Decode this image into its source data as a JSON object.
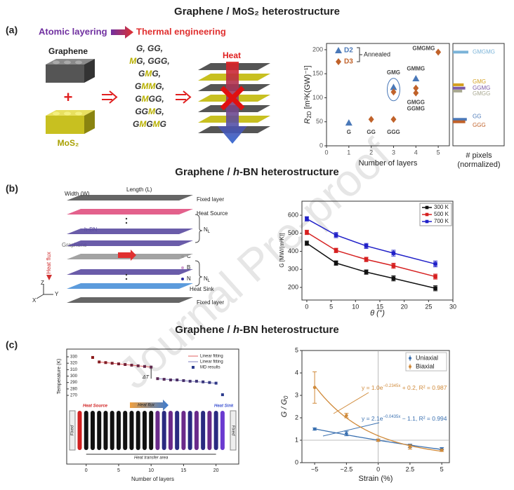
{
  "figure": {
    "watermark": "Journal Pre-proof",
    "a": {
      "title": "Graphene / MoS₂ heterostructure",
      "label": "(a)",
      "atomic_layering": "Atomic layering",
      "thermal_engineering": "Thermal engineering",
      "graphene": "Graphene",
      "plus": "+",
      "mos2": "MoS₂",
      "sequences": [
        "G, GG,",
        "MG, GGG,",
        "GMG,",
        "GMMG,",
        "GMGG,",
        "GGMG,",
        "GMGMG"
      ],
      "heat": "Heat"
    },
    "b": {
      "title": [
        "Graphene / ",
        "h",
        "-BN heterostructure"
      ],
      "label": "(b)",
      "width": "Width (W)",
      "length": "Length (L)",
      "fixed_top": "Fixed layer",
      "heat_source": "Heat Source",
      "n_l_top": [
        "N",
        "L"
      ],
      "hbn": "h-BN",
      "graphene": "Graphene",
      "heat_flux": "Heat flux",
      "n_l_bottom": [
        "N",
        "L"
      ],
      "atoms": [
        "C",
        "B",
        "N"
      ],
      "heat_sink": "Heat Sink",
      "fixed_bottom": "Fixed layer",
      "axes": [
        "Z",
        "Y",
        "X"
      ]
    },
    "c": {
      "title": [
        "Graphene / ",
        "h",
        "-BN heterostructure"
      ],
      "label": "(c)",
      "heat_source": "Heat Source",
      "heat_flux": "Heat flux",
      "heat_sink": "Heat Sink",
      "fixed": [
        "Fixed",
        "Fixed"
      ],
      "transfer_area": "Heat transfer area",
      "delta_t": "ΔT"
    }
  },
  "chart_data": [
    {
      "type": "scatter",
      "xlabel": "Number of layers",
      "ylabel": {
        "main": "R",
        "sub": "2D",
        "rest": " [m²K(GW)⁻¹]"
      },
      "xlim": [
        0,
        5.5
      ],
      "xticks": [
        0,
        1,
        2,
        3,
        4,
        5
      ],
      "ylim": [
        0,
        213
      ],
      "yticks": [
        0,
        50,
        100,
        150,
        200
      ],
      "series": [
        {
          "name": "D2",
          "color": "#4a78b8",
          "marker": "triangle",
          "x": [
            1,
            3,
            4
          ],
          "values": [
            48,
            122,
            140
          ]
        },
        {
          "name": "D3",
          "color": "#c0622a",
          "marker": "diamond",
          "x": [
            2,
            3,
            3,
            4,
            4,
            5
          ],
          "values": [
            55,
            55,
            112,
            120,
            110,
            195
          ]
        }
      ],
      "legend_note": "Annealed",
      "point_labels": [
        "G",
        "GG",
        "GGG",
        "GMG",
        "GMMG",
        "GMGG",
        "GGMG",
        "GMGMG"
      ],
      "histogram": {
        "xlabel": [
          "# pixels",
          "(normalized)"
        ],
        "bars": [
          {
            "name": "GMGMG",
            "color": "#7ab3d8",
            "center": 195,
            "count": 1.0
          },
          {
            "name": "GMG",
            "color": "#d4a020",
            "center": 127,
            "count": 0.7
          },
          {
            "name": "GGMG",
            "color": "#7a5aa8",
            "center": 120,
            "count": 0.8
          },
          {
            "name": "GMGG",
            "color": "#a8a890",
            "center": 114,
            "count": 0.6
          },
          {
            "name": "GG",
            "color": "#4a78b8",
            "center": 55,
            "count": 0.9
          },
          {
            "name": "GGG",
            "color": "#c0622a",
            "center": 50,
            "count": 0.8
          }
        ]
      }
    },
    {
      "type": "line",
      "xlabel": "θ (°)",
      "ylabel": "G [MW/(m²K)]",
      "xlim": [
        -1,
        30
      ],
      "xticks": [
        0,
        5,
        10,
        15,
        20,
        25,
        30
      ],
      "ylim": [
        130,
        678
      ],
      "yticks": [
        200,
        300,
        400,
        500,
        600
      ],
      "series": [
        {
          "name": "300 K",
          "color": "#111111",
          "x": [
            0,
            6.0,
            12.2,
            17.8,
            26.4
          ],
          "values": [
            445,
            335,
            285,
            250,
            195
          ],
          "errors": [
            12,
            12,
            12,
            14,
            14
          ]
        },
        {
          "name": "500 K",
          "color": "#d62020",
          "x": [
            0,
            6.0,
            12.2,
            17.8,
            26.4
          ],
          "values": [
            505,
            405,
            355,
            320,
            260
          ],
          "errors": [
            12,
            12,
            12,
            14,
            14
          ]
        },
        {
          "name": "700 K",
          "color": "#2020c8",
          "x": [
            0,
            6.0,
            12.2,
            17.8,
            26.4
          ],
          "values": [
            580,
            490,
            430,
            390,
            330
          ],
          "errors": [
            12,
            14,
            14,
            16,
            16
          ]
        }
      ]
    },
    {
      "type": "scatter",
      "xlabel": "Number of layers",
      "ylabel": "Temperature (K)",
      "xlim": [
        -3,
        23.5
      ],
      "xticks": [
        0,
        5,
        10,
        15,
        20
      ],
      "ylim": [
        258,
        342
      ],
      "yticks": [
        270,
        280,
        290,
        300,
        310,
        320,
        330
      ],
      "fits": [
        {
          "name": "Linear fitting",
          "color": "#e06060",
          "x": [
            2,
            10
          ],
          "values": [
            322,
            314
          ]
        },
        {
          "name": "Linear fitting",
          "color": "#8080c0",
          "x": [
            11,
            20
          ],
          "values": [
            296,
            289
          ]
        }
      ],
      "series": [
        {
          "name": "MD results",
          "colors": [
            "#8b1a1a",
            "#2a3a8c"
          ],
          "x": [
            1,
            2,
            3,
            4,
            5,
            6,
            7,
            8,
            9,
            10,
            11,
            12,
            13,
            14,
            15,
            16,
            17,
            18,
            19,
            20,
            21
          ],
          "values": [
            329,
            322,
            321,
            320,
            319,
            318,
            317,
            316,
            315,
            314,
            296,
            295,
            294,
            294,
            293,
            292,
            292,
            291,
            290,
            289,
            271
          ]
        }
      ]
    },
    {
      "type": "scatter",
      "xlabel": "Strain (%)",
      "ylabel": {
        "main": "G / G",
        "sub": "0"
      },
      "xlim": [
        -6,
        5.6
      ],
      "xticks": [
        {
          "value": -5,
          "label": "−5"
        },
        {
          "value": -2.5,
          "label": "−2.5"
        },
        0,
        2.5,
        5
      ],
      "ylim": [
        0,
        5
      ],
      "yticks": [
        0,
        1,
        2,
        3,
        4,
        5
      ],
      "series": [
        {
          "name": "Uniaxial",
          "color": "#3a70b0",
          "x": [
            -5,
            -2.5,
            0,
            2.5,
            5
          ],
          "values": [
            1.5,
            1.3,
            1.0,
            0.75,
            0.62
          ],
          "errors": [
            0.05,
            0.1,
            0.05,
            0.08,
            0.05
          ],
          "fit": {
            "a": 2.1,
            "b": -0.0435,
            "c": -1.1,
            "text": [
              "y = 2.1e",
              "−0.0435x",
              " − 1.1, R² = 0.994"
            ]
          }
        },
        {
          "name": "Biaxial",
          "color": "#d08a3a",
          "x": [
            -5,
            -2.5,
            0,
            2.5,
            5
          ],
          "values": [
            3.35,
            2.1,
            1.0,
            0.7,
            0.55
          ],
          "errors": [
            0.7,
            0.1,
            0.05,
            0.1,
            0.05
          ],
          "fit": {
            "a": 1.0,
            "b": -0.2345,
            "c": 0.2,
            "text": [
              "y = 1.0e",
              "−0.2345x",
              " + 0.2, R² = 0.987"
            ]
          }
        }
      ]
    }
  ]
}
